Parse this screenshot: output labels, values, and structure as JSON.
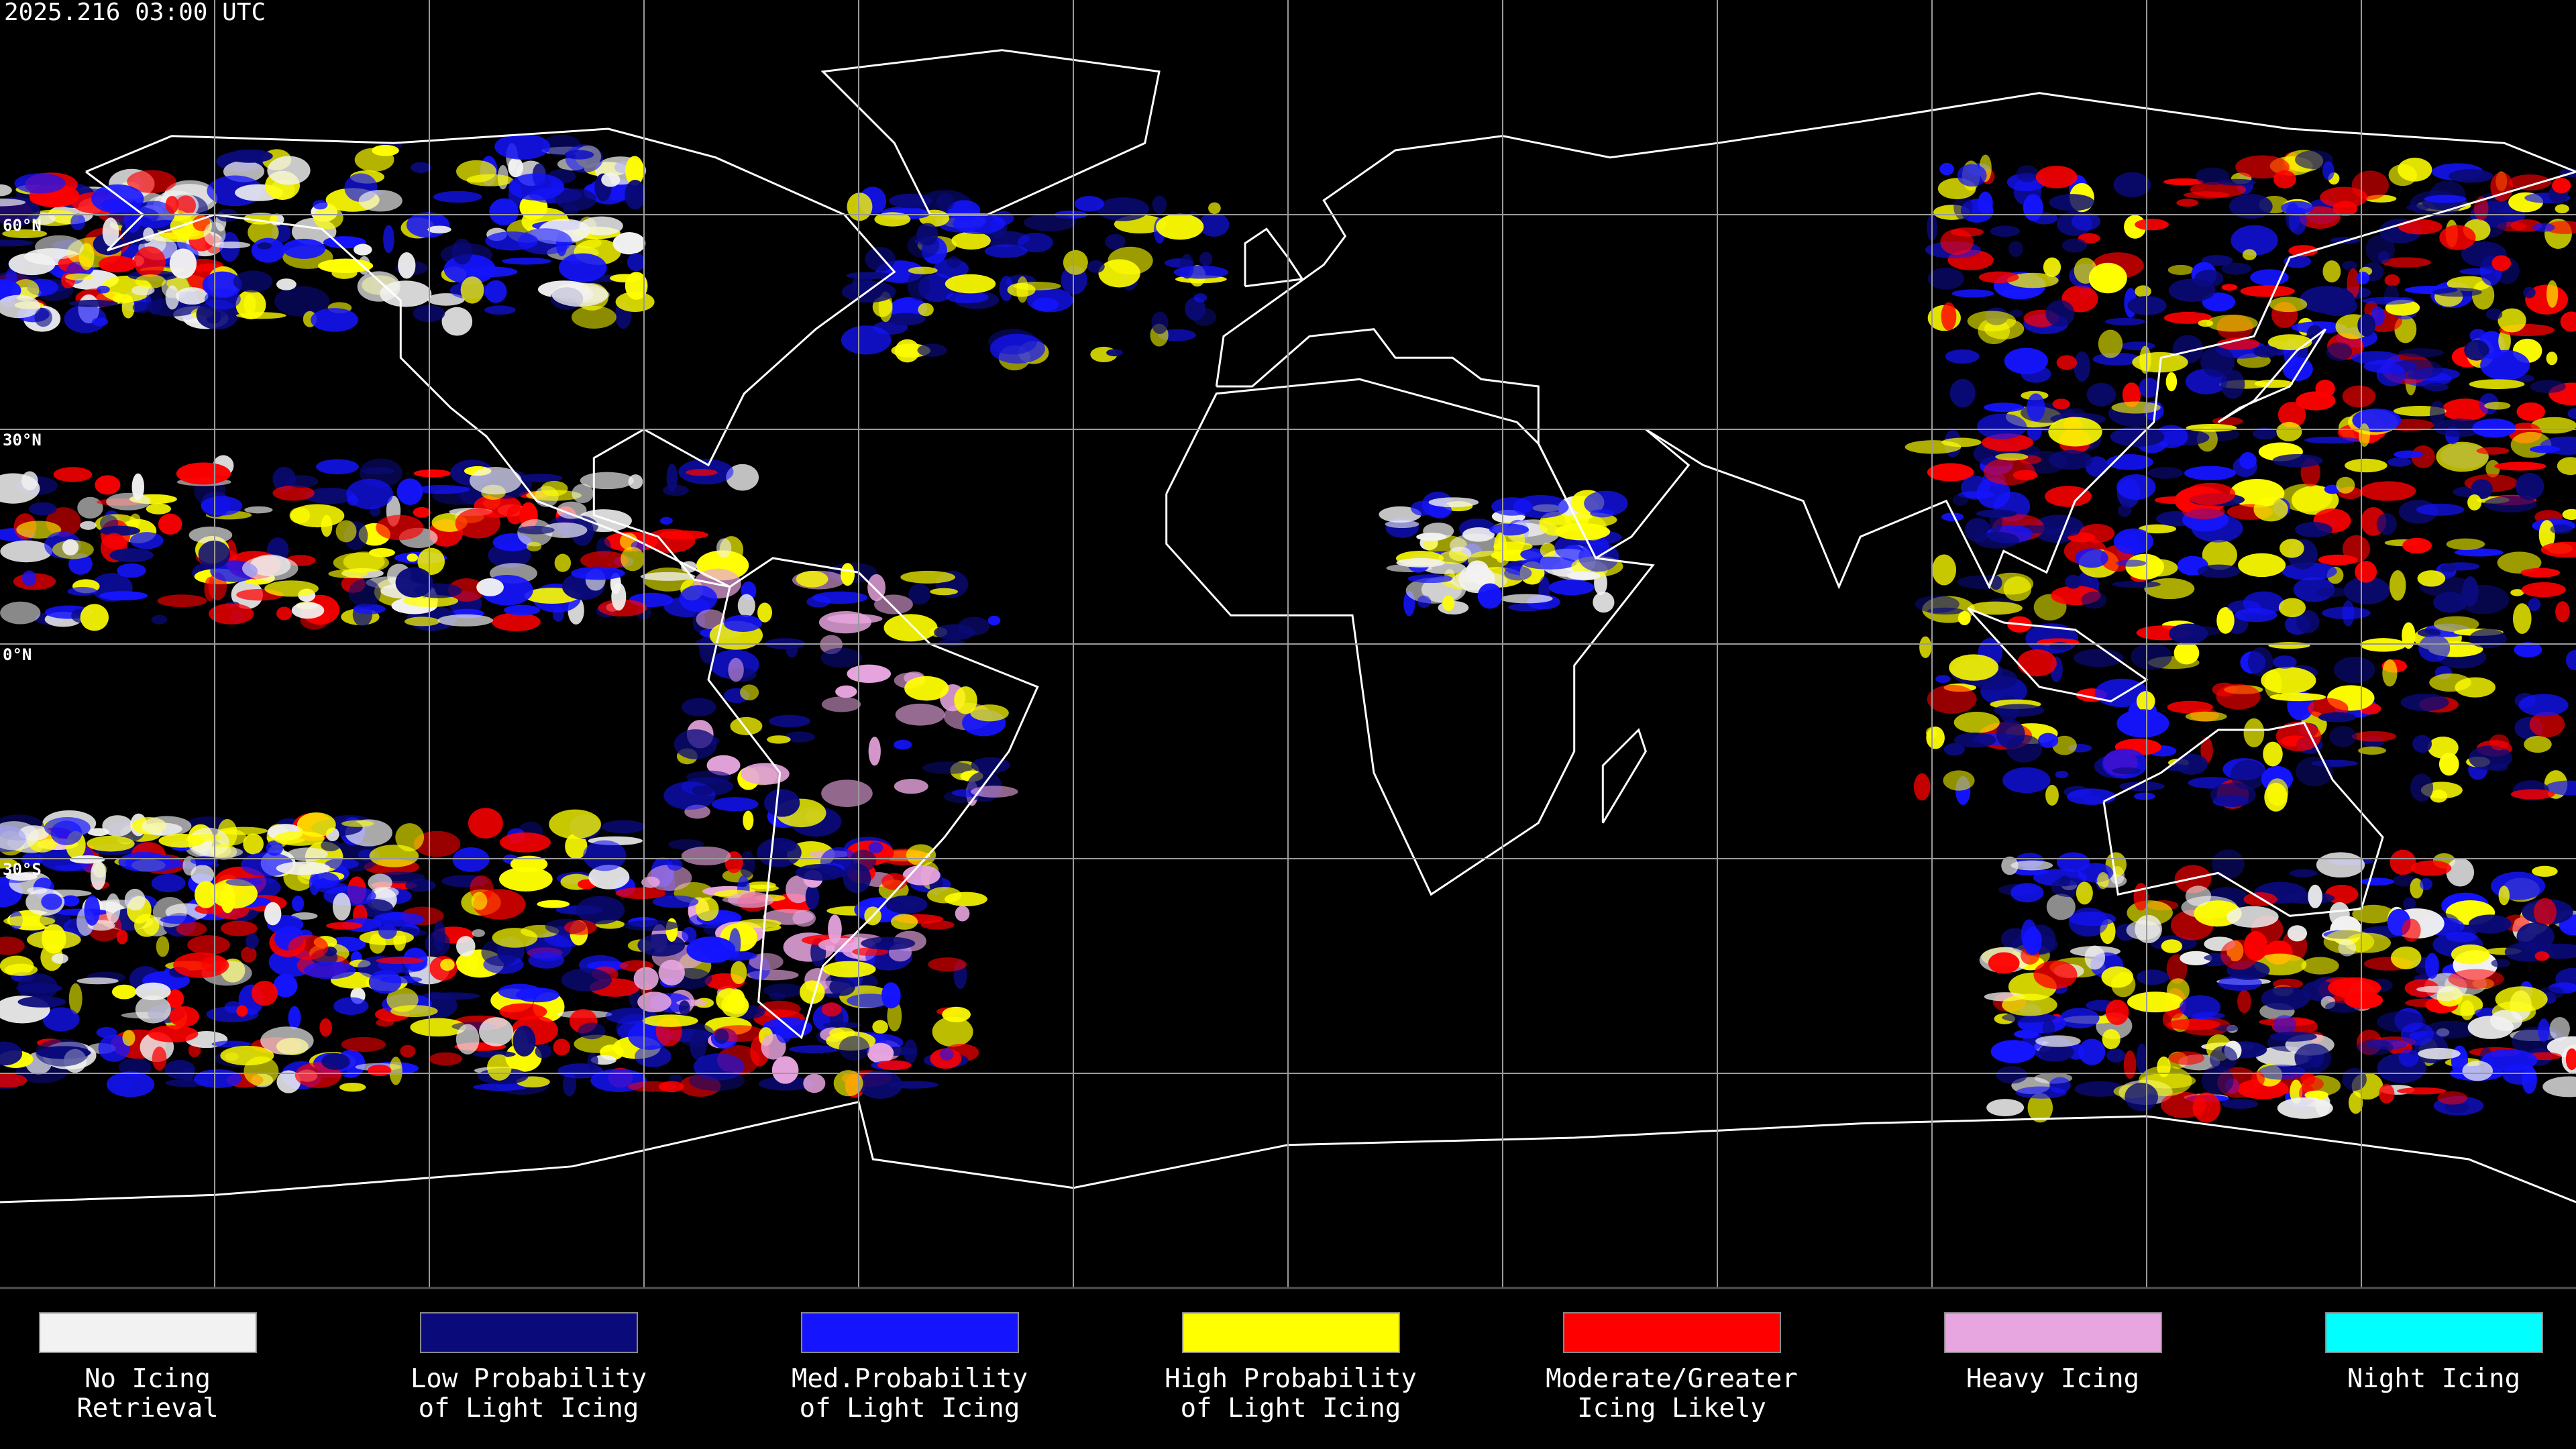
{
  "header": {
    "timestamp": "2025.216 03:00 UTC"
  },
  "map": {
    "latitude_labels": [
      "60°N",
      "30°N",
      "0°N",
      "30°S"
    ]
  },
  "legend": {
    "items": [
      {
        "lines": [
          "No Icing",
          "Retrieval"
        ],
        "color": "#f2f2f2"
      },
      {
        "lines": [
          "Low Probability",
          "of Light Icing"
        ],
        "color": "#0a0a7a"
      },
      {
        "lines": [
          "Med.Probability",
          "of Light Icing"
        ],
        "color": "#1414ff"
      },
      {
        "lines": [
          "High Probability",
          "of Light Icing"
        ],
        "color": "#ffff00"
      },
      {
        "lines": [
          "Moderate/Greater",
          "Icing Likely"
        ],
        "color": "#ff0000"
      },
      {
        "lines": [
          "Heavy Icing"
        ],
        "color": "#e8a6e0"
      },
      {
        "lines": [
          "Night Icing"
        ],
        "color": "#00ffff"
      }
    ]
  }
}
